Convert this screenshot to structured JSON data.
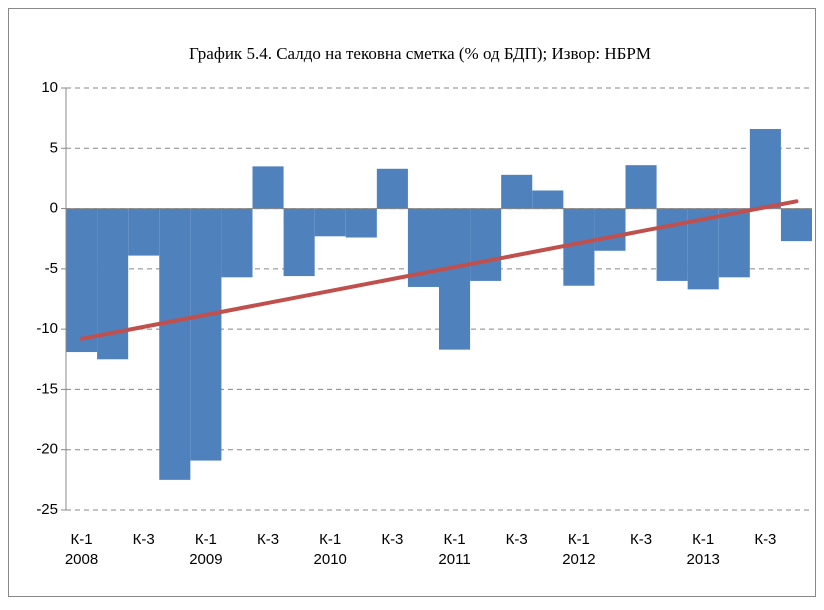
{
  "chart_data": {
    "type": "bar",
    "title": "График 5.4. Салдо на тековна сметка (% од БДП); Извор: НБРМ",
    "categories": [
      "К-1",
      null,
      "К-3",
      null,
      "К-1",
      null,
      "К-3",
      null,
      "К-1",
      null,
      "К-3",
      null,
      "К-1",
      null,
      "К-3",
      null,
      "К-1",
      null,
      "К-3",
      null,
      "К-1",
      null,
      "К-3",
      null
    ],
    "years": [
      "2008",
      null,
      null,
      null,
      "2009",
      null,
      null,
      null,
      "2010",
      null,
      null,
      null,
      "2011",
      null,
      null,
      null,
      "2012",
      null,
      null,
      null,
      "2013",
      null,
      null,
      null
    ],
    "values": [
      -11.9,
      -12.5,
      -3.9,
      -22.5,
      -20.9,
      -5.7,
      3.5,
      -5.6,
      -2.3,
      -2.4,
      3.3,
      -6.5,
      -11.7,
      -6.0,
      2.8,
      1.5,
      -6.4,
      -3.5,
      3.6,
      -6.0,
      -6.7,
      -5.7,
      6.6,
      -2.7
    ],
    "color": "#4f81bd",
    "trend": {
      "color": "#c0504d",
      "values": [
        -10.8,
        0.6
      ]
    },
    "ylim": [
      -25,
      10
    ],
    "yticks": [
      -25,
      -20,
      -15,
      -10,
      -5,
      0,
      5,
      10
    ],
    "grid": true
  }
}
